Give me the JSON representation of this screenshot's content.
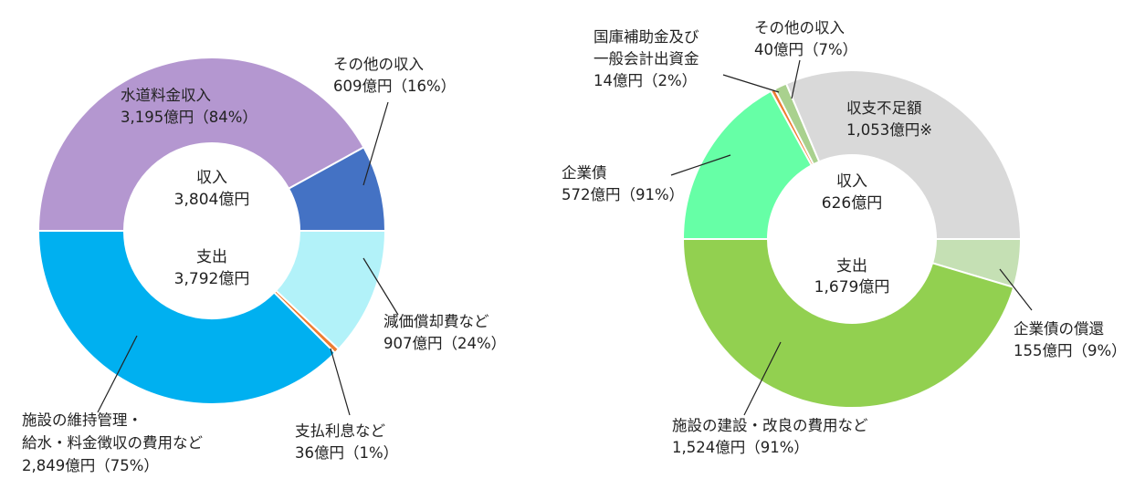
{
  "chart_data": [
    {
      "type": "donut",
      "halves": [
        {
          "center": [
            "収入",
            "3,804億円"
          ],
          "total": 3804,
          "slices": [
            {
              "label": [
                "水道料金収入",
                "3,195億円（84%）"
              ],
              "value": 3195,
              "color": "#b497d0"
            },
            {
              "label": [
                "その他の収入",
                "609億円（16%）"
              ],
              "value": 609,
              "color": "#4472c4"
            }
          ]
        },
        {
          "center": [
            "支出",
            "3,792億円"
          ],
          "total": 3792,
          "slices": [
            {
              "label": [
                "減価償却費など",
                "907億円（24%）"
              ],
              "value": 907,
              "color": "#b2f2f9"
            },
            {
              "label": [
                "支払利息など",
                "36億円（1%）"
              ],
              "value": 36,
              "color": "#ed7d31"
            },
            {
              "label": [
                "施設の維持管理・",
                "給水・料金徴収の費用など",
                "2,849億円（75%）"
              ],
              "value": 2849,
              "color": "#00b0f0"
            }
          ]
        }
      ]
    },
    {
      "type": "donut",
      "halves": [
        {
          "center": [
            "収入",
            "626億円"
          ],
          "total": 1679,
          "slices": [
            {
              "label": [
                "その他の収入",
                "40億円（7%）"
              ],
              "value": 40,
              "color": "#a9d18e"
            },
            {
              "label": [
                "国庫補助金及び",
                "一般会計出資金",
                "14億円（2%）"
              ],
              "value": 14,
              "color": "#ed7d31"
            },
            {
              "label": [
                "企業債",
                "572億円（91%）"
              ],
              "value": 572,
              "color": "#66ffa6"
            },
            {
              "label": [
                "収支不足額",
                "1,053億円※"
              ],
              "value": 1053,
              "color": "#d9d9d9"
            }
          ]
        },
        {
          "center": [
            "支出",
            "1,679億円"
          ],
          "total": 1679,
          "slices": [
            {
              "label": [
                "企業債の償還",
                "155億円（9%）"
              ],
              "value": 155,
              "color": "#c5e0b4"
            },
            {
              "label": [
                "施設の建設・改良の費用など",
                "1,524億円（91%）"
              ],
              "value": 1524,
              "color": "#92d050"
            }
          ]
        }
      ]
    }
  ]
}
